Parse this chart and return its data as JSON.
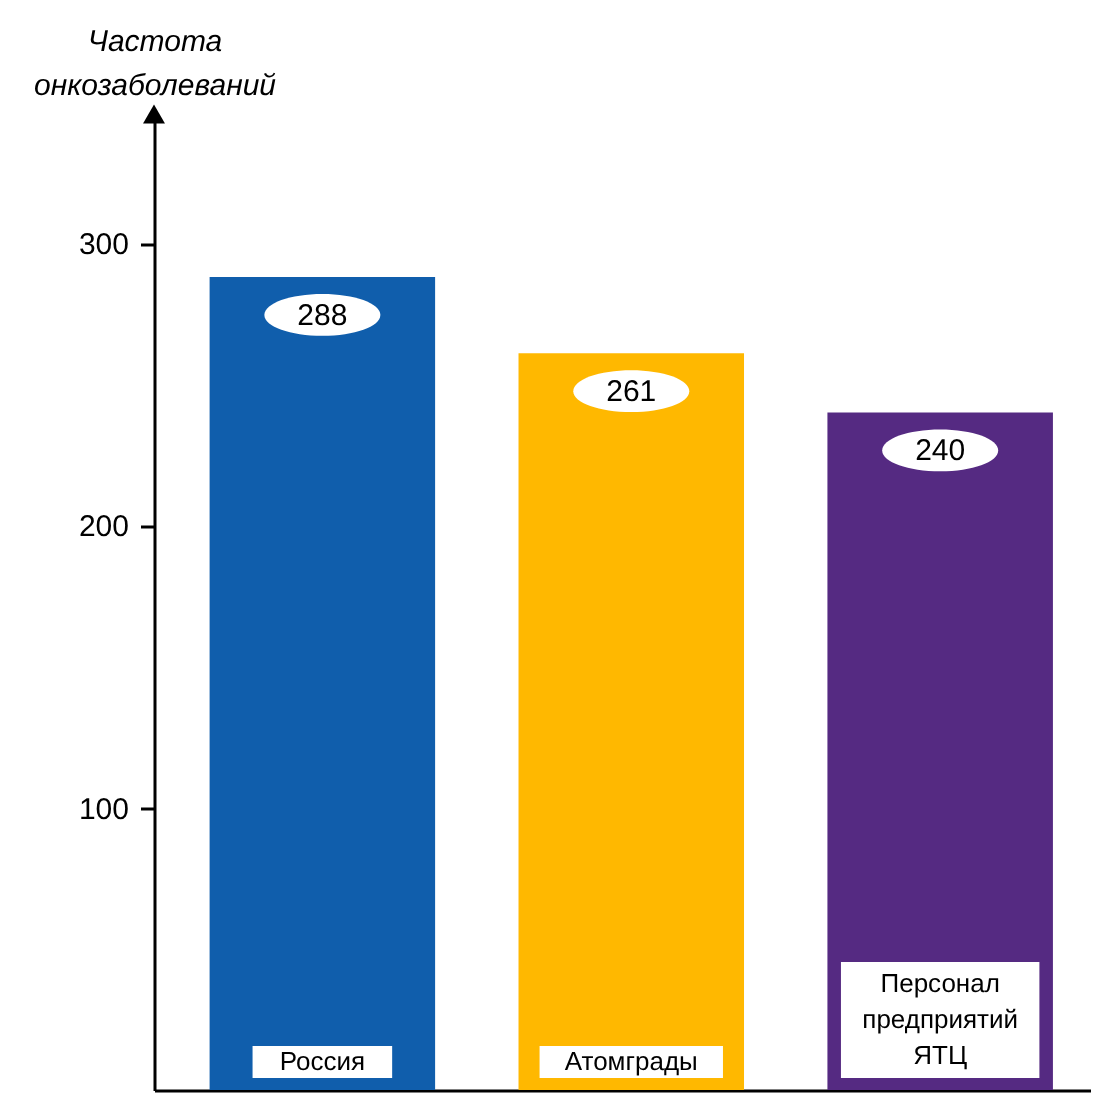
{
  "chart_data": {
    "type": "bar",
    "ylabel": "Частота онкозаболеваний",
    "categories": [
      "Россия",
      "Атомграды",
      "Персонал предприятий ЯТЦ"
    ],
    "values": [
      288,
      261,
      240
    ],
    "colors": [
      "#105eac",
      "#ffb800",
      "#552a82"
    ],
    "ylim": [
      0,
      345
    ],
    "yticks": [
      100,
      200,
      300
    ],
    "data_labels": true
  }
}
